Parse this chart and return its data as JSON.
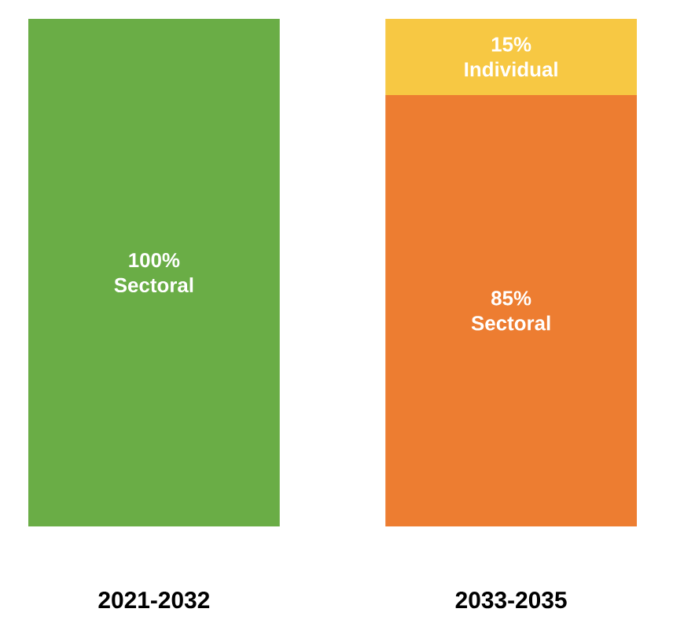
{
  "chart_data": {
    "type": "bar",
    "stacked": true,
    "categories": [
      "2021-2032",
      "2033-2035"
    ],
    "series": [
      {
        "name": "Sectoral",
        "colors": [
          "#6aad46",
          "#ed7d31"
        ],
        "values": [
          100,
          85
        ],
        "value_labels": [
          "100%",
          "85%"
        ]
      },
      {
        "name": "Individual",
        "colors": [
          "#f7c843",
          "#f7c843"
        ],
        "values": [
          null,
          15
        ],
        "value_labels": [
          null,
          "15%"
        ]
      }
    ]
  }
}
